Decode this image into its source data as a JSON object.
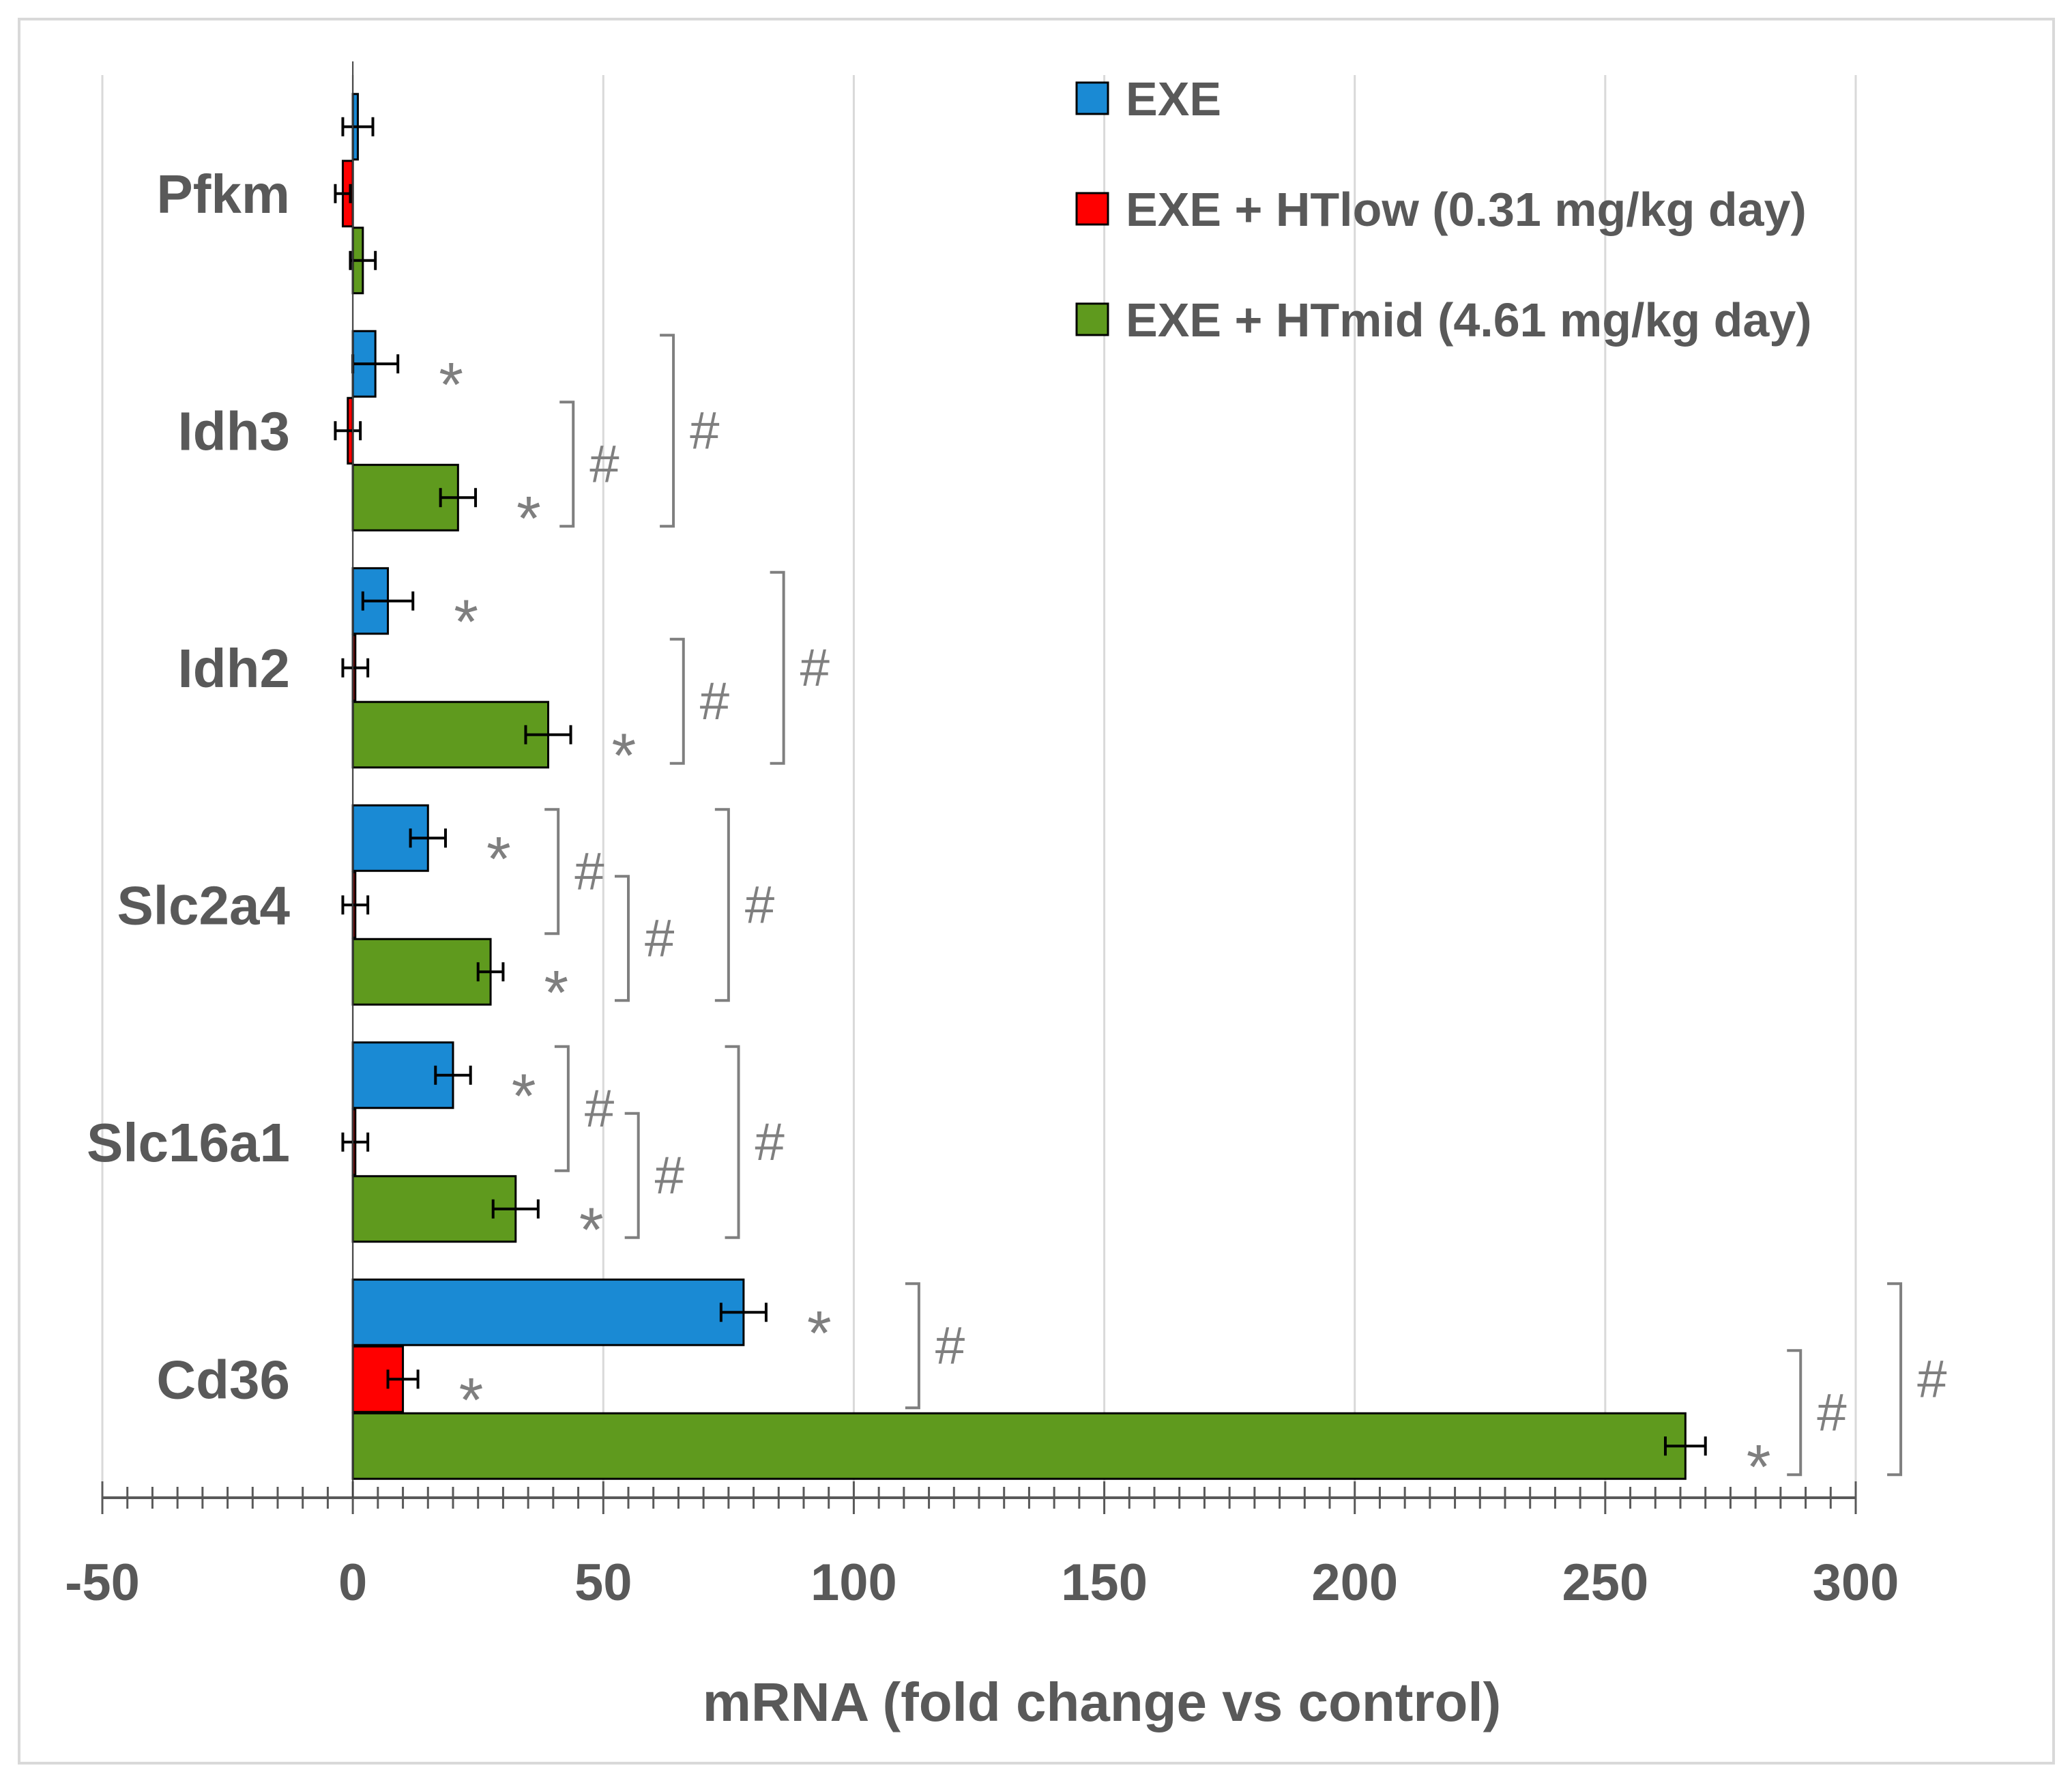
{
  "chart_data": {
    "type": "bar",
    "orientation": "horizontal",
    "categories": [
      "Pfkm",
      "Idh3",
      "Idh2",
      "Slc2a4",
      "Slc16a1",
      "Cd36"
    ],
    "series": [
      {
        "name": "EXE",
        "color": "#1a8ad4",
        "values": [
          1,
          4.5,
          7,
          15,
          20,
          78
        ],
        "errors": [
          3,
          4.5,
          5,
          3.5,
          3.5,
          4.5
        ]
      },
      {
        "name": "EXE + HTlow (0.31 mg/kg day)",
        "color": "#ff0000",
        "values": [
          -2,
          -1,
          0.5,
          0.5,
          0.5,
          10
        ],
        "errors": [
          1.5,
          2.5,
          2.5,
          2.5,
          2.5,
          3
        ]
      },
      {
        "name": "EXE + HTmid (4.61 mg/kg day)",
        "color": "#5f9a1e",
        "values": [
          2,
          21,
          39,
          27.5,
          32.5,
          266
        ],
        "errors": [
          2.5,
          3.5,
          4.5,
          2.5,
          4.5,
          4
        ]
      }
    ],
    "significance": {
      "star_symbol": "*",
      "hash_symbol": "#",
      "stars": [
        {
          "category": "Idh3",
          "series": 0
        },
        {
          "category": "Idh3",
          "series": 2
        },
        {
          "category": "Idh2",
          "series": 0
        },
        {
          "category": "Idh2",
          "series": 2
        },
        {
          "category": "Slc2a4",
          "series": 0
        },
        {
          "category": "Slc2a4",
          "series": 2
        },
        {
          "category": "Slc16a1",
          "series": 0
        },
        {
          "category": "Slc16a1",
          "series": 2
        },
        {
          "category": "Cd36",
          "series": 0
        },
        {
          "category": "Cd36",
          "series": 1
        },
        {
          "category": "Cd36",
          "series": 2
        }
      ],
      "brackets": [
        {
          "category": "Idh3",
          "from": 1,
          "to": 2,
          "x": 44
        },
        {
          "category": "Idh3",
          "from": 0,
          "to": 2,
          "x": 64
        },
        {
          "category": "Idh2",
          "from": 1,
          "to": 2,
          "x": 66
        },
        {
          "category": "Idh2",
          "from": 0,
          "to": 2,
          "x": 86
        },
        {
          "category": "Slc2a4",
          "from": 0,
          "to": 1,
          "x": 41
        },
        {
          "category": "Slc2a4",
          "from": 1,
          "to": 2,
          "x": 55
        },
        {
          "category": "Slc2a4",
          "from": 0,
          "to": 2,
          "x": 75
        },
        {
          "category": "Slc16a1",
          "from": 0,
          "to": 1,
          "x": 43
        },
        {
          "category": "Slc16a1",
          "from": 1,
          "to": 2,
          "x": 57
        },
        {
          "category": "Slc16a1",
          "from": 0,
          "to": 2,
          "x": 77
        },
        {
          "category": "Cd36",
          "from": 0,
          "to": 1,
          "x": 113
        },
        {
          "category": "Cd36",
          "from": 1,
          "to": 2,
          "x": 289
        },
        {
          "category": "Cd36",
          "from": 0,
          "to": 2,
          "x": 309
        }
      ]
    },
    "xlabel": "mRNA (fold change vs control)",
    "ylabel": "",
    "xlim": [
      -50,
      300
    ],
    "xticks": [
      -50,
      0,
      50,
      100,
      150,
      200,
      250,
      300
    ],
    "xtick_labels": [
      "-50",
      "0",
      "50",
      "100",
      "150",
      "200",
      "250",
      "300"
    ],
    "minor_tick_step": 5,
    "grid": "vertical",
    "legend_position": "top-right",
    "colors": {
      "grid": "#d9d9d9",
      "axis": "#595959",
      "text": "#595959",
      "annotation": "#7f7f7f",
      "frame": "#d9d9d9"
    }
  }
}
